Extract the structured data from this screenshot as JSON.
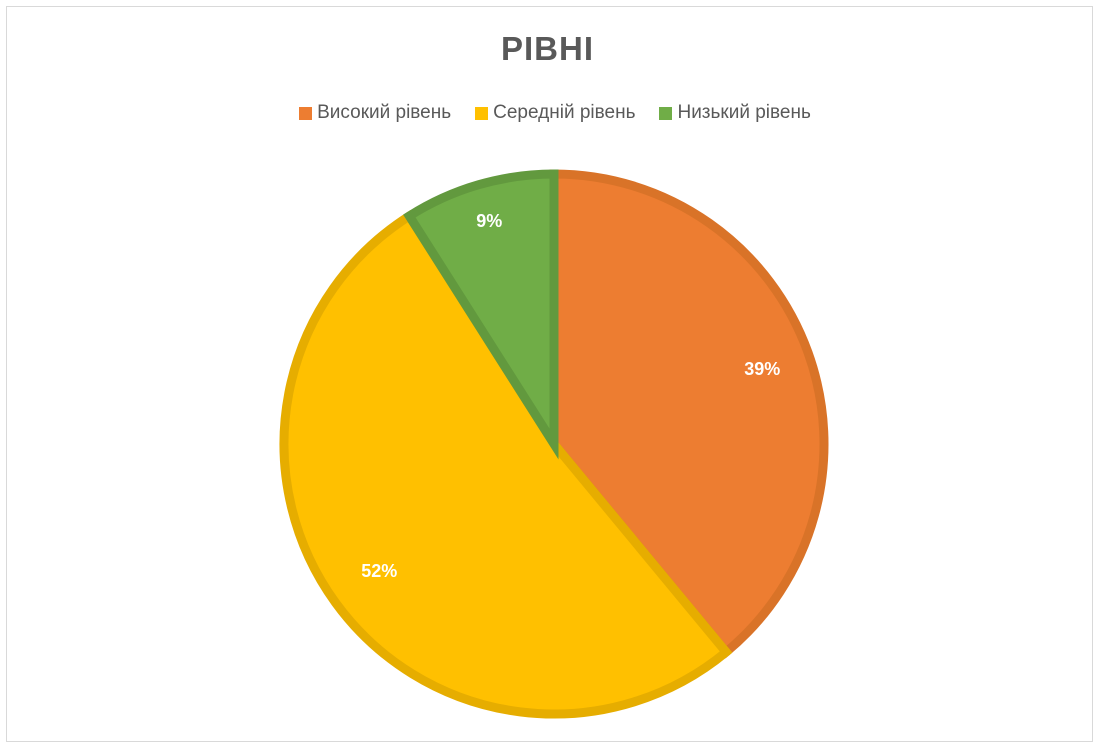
{
  "chart_data": {
    "type": "pie",
    "title": "РІВНІ",
    "categories": [
      "Високий рівень",
      "Середній рівень",
      "Низький рівень"
    ],
    "values": [
      39,
      52,
      9
    ],
    "labels": [
      "39%",
      "52%",
      "9%"
    ],
    "colors": [
      "#ED7D31",
      "#FFC000",
      "#70AD47"
    ],
    "border_colors": [
      "#D97328",
      "#E6AD00",
      "#62993E"
    ],
    "legend_position": "top"
  }
}
